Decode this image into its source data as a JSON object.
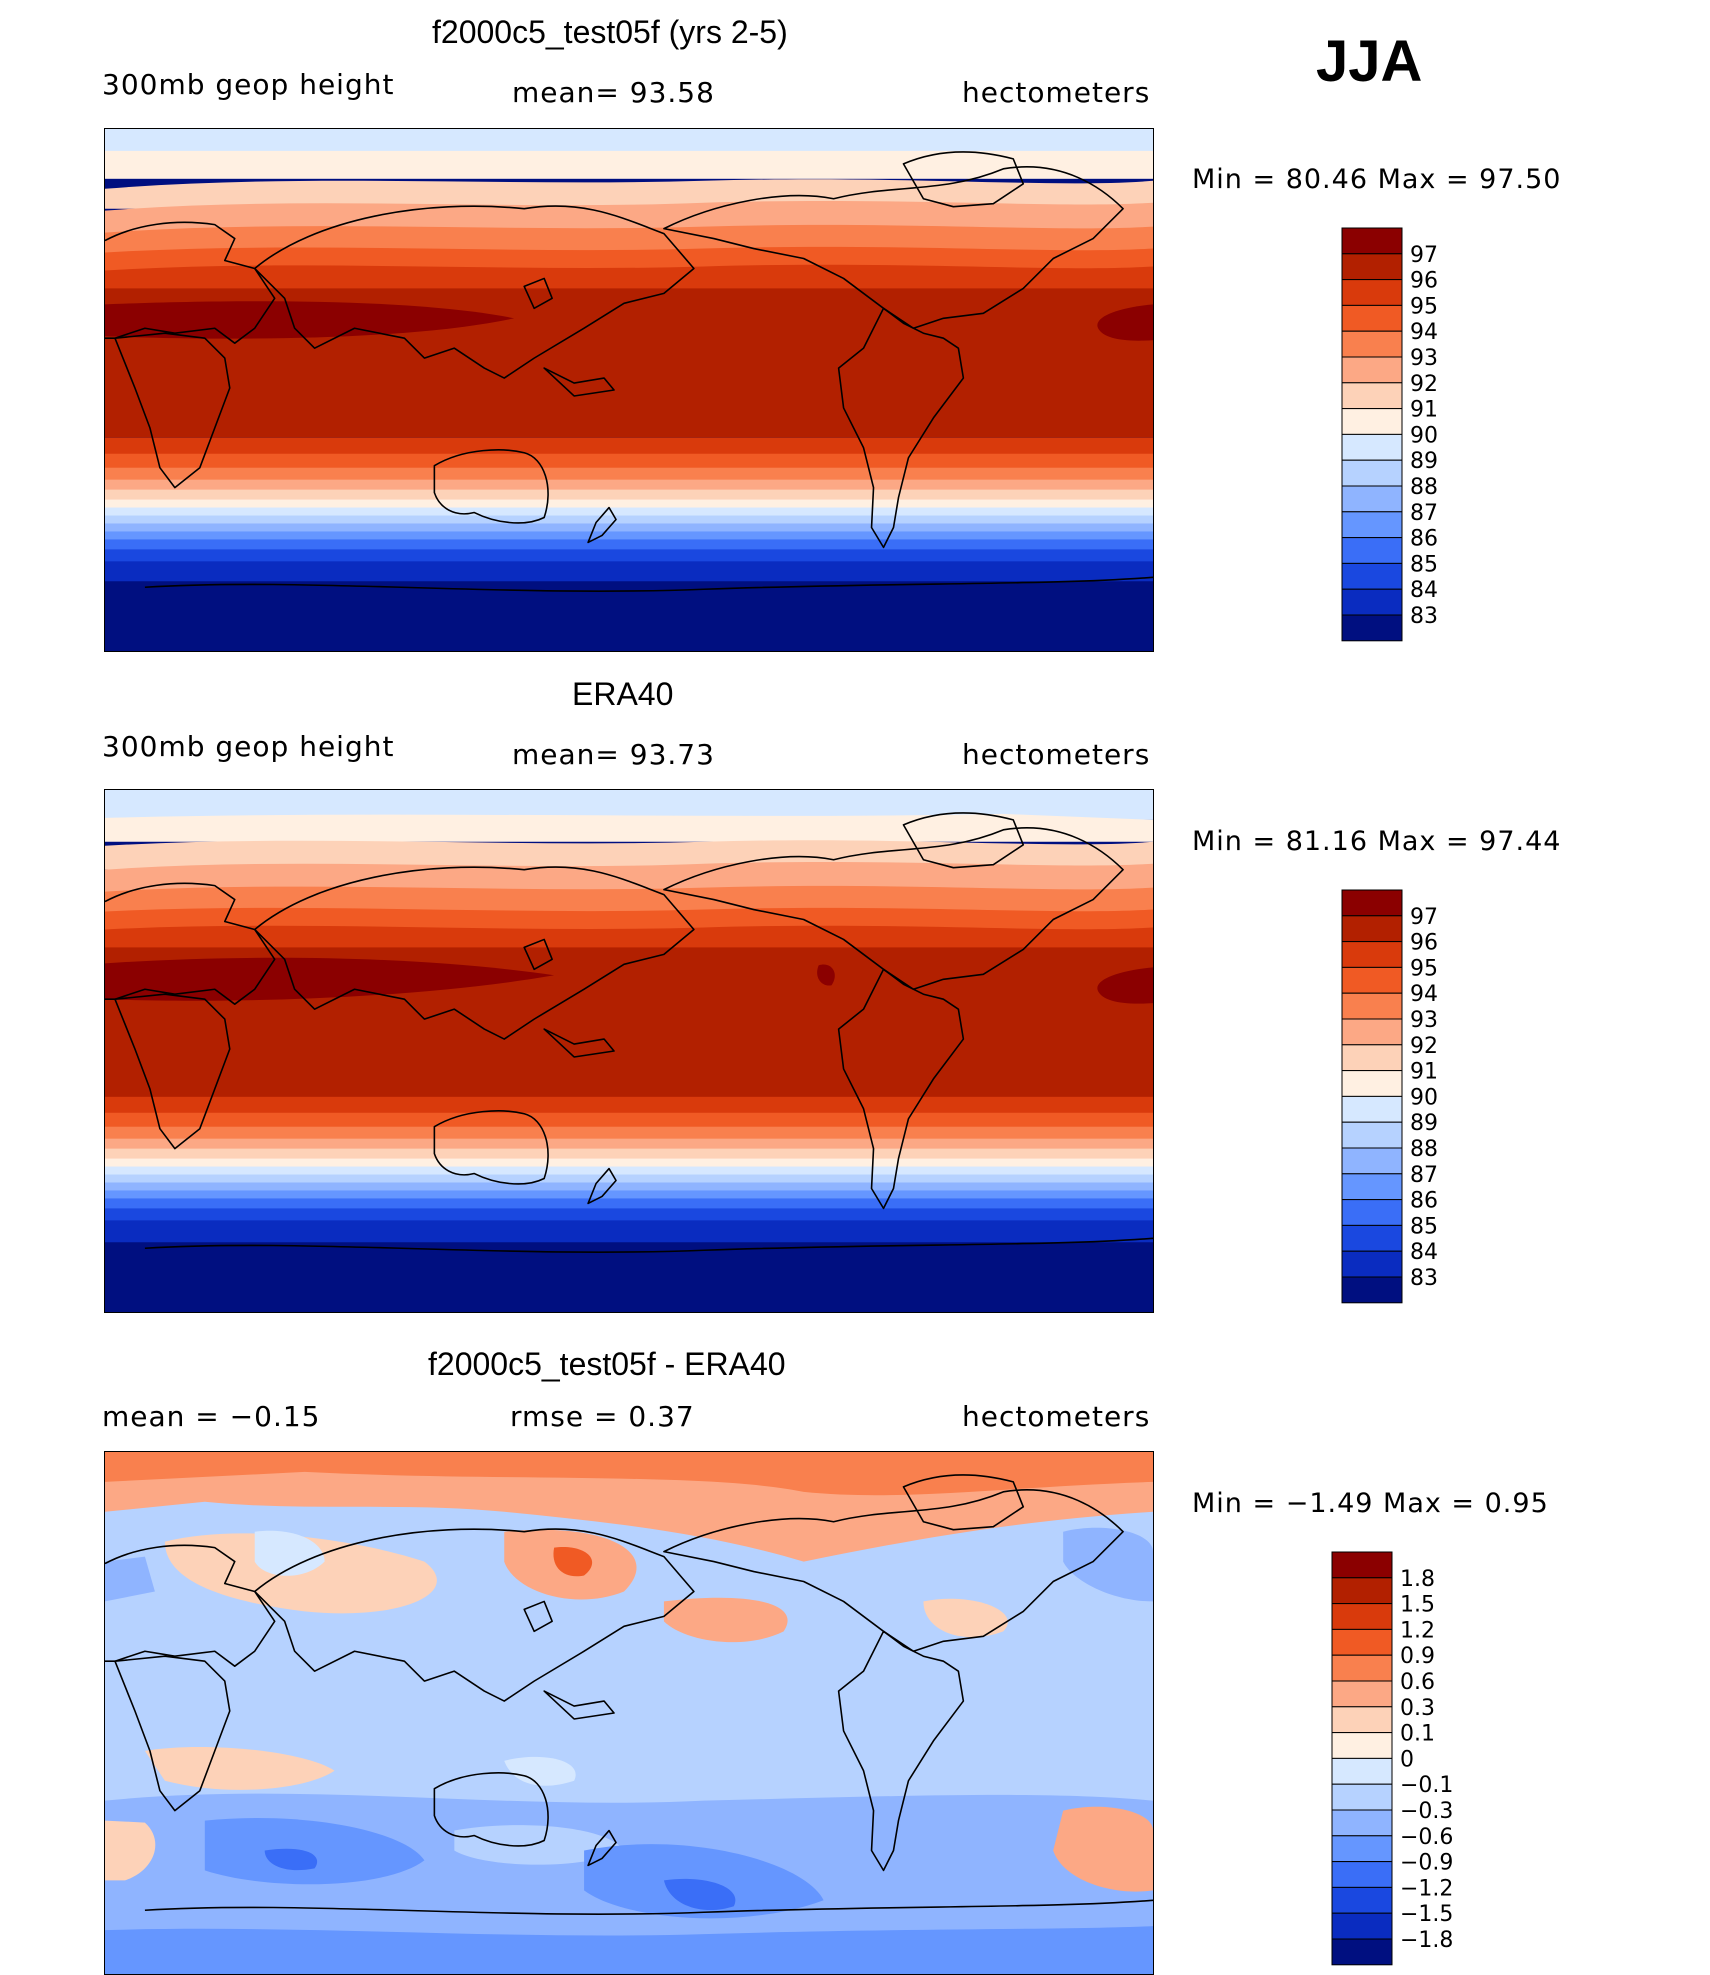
{
  "season": "JJA",
  "panels": [
    {
      "id": "model",
      "title": "f2000c5_test05f (yrs 2-5)",
      "left_label": "300mb  geop  height",
      "center_label": "mean=   93.58",
      "right_label": "hectometers",
      "minmax": "Min  =    80.46  Max  =    97.50",
      "colorbar": {
        "levels": [
          "97",
          "96",
          "95",
          "94",
          "93",
          "92",
          "91",
          "90",
          "89",
          "88",
          "87",
          "86",
          "85",
          "84",
          "83"
        ],
        "colors": [
          "#8b0000",
          "#b22000",
          "#d93a0c",
          "#f05a24",
          "#f9804e",
          "#fca885",
          "#fdd2b8",
          "#fff0e2",
          "#d6e8ff",
          "#b6d2ff",
          "#8fb4ff",
          "#6596ff",
          "#3a6ef7",
          "#1a48e0",
          "#0a2cc0",
          "#000f80"
        ]
      }
    },
    {
      "id": "obs",
      "title": "ERA40",
      "left_label": "300mb  geop  height",
      "center_label": "mean=   93.73",
      "right_label": "hectometers",
      "minmax": "Min  =    81.16  Max  =    97.44",
      "colorbar": {
        "levels": [
          "97",
          "96",
          "95",
          "94",
          "93",
          "92",
          "91",
          "90",
          "89",
          "88",
          "87",
          "86",
          "85",
          "84",
          "83"
        ],
        "colors": [
          "#8b0000",
          "#b22000",
          "#d93a0c",
          "#f05a24",
          "#f9804e",
          "#fca885",
          "#fdd2b8",
          "#fff0e2",
          "#d6e8ff",
          "#b6d2ff",
          "#8fb4ff",
          "#6596ff",
          "#3a6ef7",
          "#1a48e0",
          "#0a2cc0",
          "#000f80"
        ]
      }
    },
    {
      "id": "diff",
      "title": "f2000c5_test05f - ERA40",
      "left_label": "mean  =    −0.15",
      "center_label": "rmse  =     0.37",
      "right_label": "hectometers",
      "minmax": "Min  =    −1.49  Max  =      0.95",
      "colorbar": {
        "levels": [
          "1.8",
          "1.5",
          "1.2",
          "0.9",
          "0.6",
          "0.3",
          "0.1",
          "0",
          "−0.1",
          "−0.3",
          "−0.6",
          "−0.9",
          "−1.2",
          "−1.5",
          "−1.8"
        ],
        "colors": [
          "#8b0000",
          "#b22000",
          "#d93a0c",
          "#f05a24",
          "#f9804e",
          "#fca885",
          "#fdd2b8",
          "#fff0e2",
          "#d6e8ff",
          "#b6d2ff",
          "#8fb4ff",
          "#6596ff",
          "#3a6ef7",
          "#1a48e0",
          "#0a2cc0",
          "#000f80"
        ]
      }
    }
  ],
  "colors": {
    "background": "#ffffff",
    "frame": "#000000"
  }
}
